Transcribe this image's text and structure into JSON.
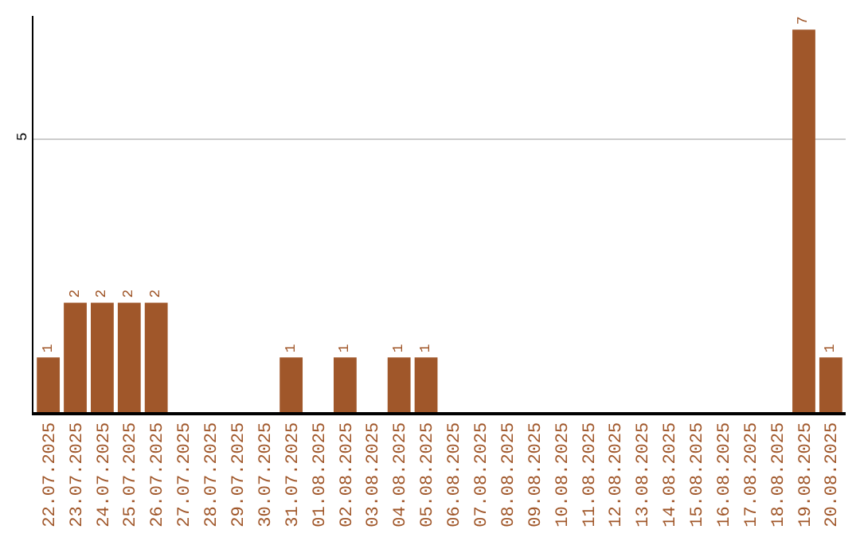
{
  "chart_data": {
    "type": "bar",
    "categories": [
      "22.07.2025",
      "23.07.2025",
      "24.07.2025",
      "25.07.2025",
      "26.07.2025",
      "27.07.2025",
      "28.07.2025",
      "29.07.2025",
      "30.07.2025",
      "31.07.2025",
      "01.08.2025",
      "02.08.2025",
      "03.08.2025",
      "04.08.2025",
      "05.08.2025",
      "06.08.2025",
      "07.08.2025",
      "08.08.2025",
      "09.08.2025",
      "10.08.2025",
      "11.08.2025",
      "12.08.2025",
      "13.08.2025",
      "14.08.2025",
      "15.08.2025",
      "16.08.2025",
      "17.08.2025",
      "18.08.2025",
      "19.08.2025",
      "20.08.2025"
    ],
    "values": [
      1,
      2,
      2,
      2,
      2,
      0,
      0,
      0,
      0,
      1,
      0,
      1,
      0,
      1,
      1,
      0,
      0,
      0,
      0,
      0,
      0,
      0,
      0,
      0,
      0,
      0,
      0,
      0,
      7,
      1
    ],
    "value_labels": [
      "1",
      "2",
      "2",
      "2",
      "2",
      null,
      null,
      null,
      null,
      "1",
      null,
      "1",
      null,
      "1",
      "1",
      null,
      null,
      null,
      null,
      null,
      null,
      null,
      null,
      null,
      null,
      null,
      null,
      null,
      "7",
      "1"
    ],
    "color": "#a0572a",
    "ylim": [
      0,
      7.25
    ],
    "yticks": [
      5
    ],
    "grid": "y",
    "legend": false
  }
}
